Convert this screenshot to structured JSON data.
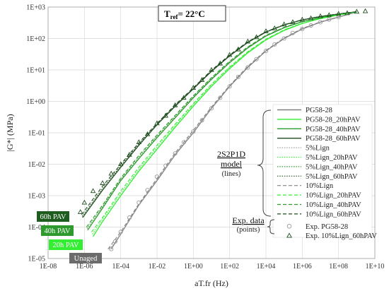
{
  "chart_data": {
    "type": "line",
    "title": "",
    "xlabel": "aT.fr (Hz)",
    "ylabel": "|G*| (MPa)",
    "x_scale": "log",
    "y_scale": "log",
    "xlim": [
      1e-08,
      10000000000.0
    ],
    "ylim": [
      1e-05,
      1000.0
    ],
    "x_ticks": [
      "1E-08",
      "1E-06",
      "1E-04",
      "1E-02",
      "1E+00",
      "1E+02",
      "1E+04",
      "1E+06",
      "1E+08",
      "1E+10"
    ],
    "y_ticks": [
      "1E-05",
      "1E-04",
      "1E-03",
      "1E-02",
      "1E-01",
      "1E+00",
      "1E+01",
      "1E+02",
      "1E+03"
    ],
    "grid": true,
    "annotation": {
      "main": "T",
      "sub": "ref",
      "rest": "= 22°C"
    },
    "group_labels": {
      "model": [
        "2S2P1D",
        "model",
        "(lines)"
      ],
      "exp": [
        "Exp. data",
        "(points)"
      ]
    },
    "age_tags": [
      {
        "text": "60h PAV",
        "color": "#1f5c1f"
      },
      {
        "text": "40h PAV",
        "color": "#2e9a2e"
      },
      {
        "text": "20h PAV",
        "color": "#33ee33"
      },
      {
        "text": "Unaged",
        "color": "#6b6b6b"
      }
    ],
    "series": [
      {
        "name": "PG58-28",
        "color": "#808080",
        "style": "solid",
        "x": [
          3e-05,
          0.0001,
          0.001,
          0.01,
          0.1,
          1,
          10,
          100,
          1000,
          10000,
          100000,
          1000000,
          10000000,
          100000000,
          1000000000
        ],
        "y": [
          2e-05,
          6e-05,
          0.0005,
          0.003,
          0.02,
          0.1,
          0.6,
          3,
          12,
          40,
          100,
          200,
          330,
          480,
          700
        ]
      },
      {
        "name": "PG58-28_20hPAV",
        "color": "#33ee33",
        "style": "solid",
        "x": [
          3e-06,
          1e-05,
          0.0001,
          0.001,
          0.01,
          0.1,
          1,
          10,
          100,
          1000,
          10000,
          100000,
          1000000,
          10000000,
          100000000,
          1000000000
        ],
        "y": [
          5e-05,
          0.00015,
          0.001,
          0.006,
          0.03,
          0.15,
          0.7,
          3,
          11,
          35,
          90,
          180,
          300,
          430,
          560,
          700
        ]
      },
      {
        "name": "PG58-28_40hPAV",
        "color": "#2e9a2e",
        "style": "solid",
        "x": [
          1.5e-06,
          1e-05,
          0.0001,
          0.001,
          0.01,
          0.1,
          1,
          10,
          100,
          1000,
          10000,
          100000,
          1000000,
          10000000,
          100000000,
          1000000000
        ],
        "y": [
          8e-05,
          0.0004,
          0.003,
          0.015,
          0.07,
          0.3,
          1.3,
          5,
          17,
          50,
          120,
          220,
          340,
          460,
          580,
          700
        ]
      },
      {
        "name": "PG58-28_60hPAV",
        "color": "#1f4d1f",
        "style": "solid",
        "x": [
          8e-07,
          1e-05,
          0.0001,
          0.001,
          0.01,
          0.1,
          1,
          10,
          100,
          1000,
          10000,
          100000,
          1000000,
          10000000,
          100000000,
          1000000000
        ],
        "y": [
          0.0002,
          0.0015,
          0.008,
          0.04,
          0.18,
          0.7,
          2.5,
          9,
          28,
          75,
          160,
          270,
          390,
          500,
          600,
          710
        ]
      },
      {
        "name": "5%Lign",
        "color": "#a0a0a0",
        "style": "dotted",
        "x": [
          2.5e-05,
          0.0001,
          0.001,
          0.01,
          0.1,
          1,
          10,
          100,
          1000,
          10000,
          100000,
          1000000,
          10000000,
          100000000,
          1000000000
        ],
        "y": [
          2e-05,
          6e-05,
          0.0005,
          0.0032,
          0.021,
          0.11,
          0.62,
          3.1,
          12.5,
          41,
          102,
          205,
          335,
          485,
          705
        ]
      },
      {
        "name": "5%Lign_20hPAV",
        "color": "#33ee33",
        "style": "dotted",
        "x": [
          2.8e-06,
          1e-05,
          0.0001,
          0.001,
          0.01,
          0.1,
          1,
          10,
          100,
          1000,
          10000,
          100000,
          1000000,
          10000000,
          100000000,
          1000000000
        ],
        "y": [
          6e-05,
          0.00018,
          0.0012,
          0.007,
          0.035,
          0.17,
          0.78,
          3.3,
          12,
          37,
          93,
          185,
          305,
          435,
          565,
          702
        ]
      },
      {
        "name": "5%Lign_40hPAV",
        "color": "#2e9a2e",
        "style": "dotted",
        "x": [
          1.4e-06,
          1e-05,
          0.0001,
          0.001,
          0.01,
          0.1,
          1,
          10,
          100,
          1000,
          10000,
          100000,
          1000000,
          10000000,
          100000000,
          1000000000
        ],
        "y": [
          9e-05,
          0.00045,
          0.0033,
          0.017,
          0.078,
          0.33,
          1.4,
          5.4,
          18,
          52,
          123,
          224,
          344,
          464,
          584,
          702
        ]
      },
      {
        "name": "5%Lign_60hPAV",
        "color": "#1f4d1f",
        "style": "dotted",
        "x": [
          7.5e-07,
          1e-05,
          0.0001,
          0.001,
          0.01,
          0.1,
          1,
          10,
          100,
          1000,
          10000,
          100000,
          1000000,
          10000000,
          100000000,
          1000000000
        ],
        "y": [
          0.00022,
          0.0017,
          0.009,
          0.044,
          0.19,
          0.74,
          2.6,
          9.4,
          29,
          77,
          162,
          272,
          392,
          502,
          602,
          712
        ]
      },
      {
        "name": "10%Lign",
        "color": "#808080",
        "style": "dashed",
        "x": [
          2e-05,
          0.0001,
          0.001,
          0.01,
          0.1,
          1,
          10,
          100,
          1000,
          10000,
          100000,
          1000000,
          10000000,
          100000000,
          1000000000
        ],
        "y": [
          2e-05,
          7e-05,
          0.00055,
          0.0035,
          0.023,
          0.12,
          0.66,
          3.2,
          13,
          42,
          104,
          208,
          338,
          488,
          708
        ]
      },
      {
        "name": "10%Lign_20hPAV",
        "color": "#33ee33",
        "style": "dashed",
        "x": [
          2.5e-06,
          1e-05,
          0.0001,
          0.001,
          0.01,
          0.1,
          1,
          10,
          100,
          1000,
          10000,
          100000,
          1000000,
          10000000,
          100000000,
          1000000000
        ],
        "y": [
          7e-05,
          0.0002,
          0.0014,
          0.008,
          0.04,
          0.19,
          0.85,
          3.5,
          12.5,
          38,
          95,
          188,
          308,
          438,
          568,
          704
        ]
      },
      {
        "name": "10%Lign_40hPAV",
        "color": "#2e9a2e",
        "style": "dashed",
        "x": [
          1.3e-06,
          1e-05,
          0.0001,
          0.001,
          0.01,
          0.1,
          1,
          10,
          100,
          1000,
          10000,
          100000,
          1000000,
          10000000,
          100000000,
          1000000000
        ],
        "y": [
          0.0001,
          0.0005,
          0.0036,
          0.019,
          0.085,
          0.36,
          1.5,
          5.7,
          19,
          54,
          126,
          227,
          347,
          467,
          587,
          704
        ]
      },
      {
        "name": "10%Lign_60hPAV",
        "color": "#1f4d1f",
        "style": "dashed",
        "x": [
          7e-07,
          1e-05,
          0.0001,
          0.001,
          0.01,
          0.1,
          1,
          10,
          100,
          1000,
          10000,
          100000,
          1000000,
          10000000,
          100000000,
          1000000000
        ],
        "y": [
          0.00025,
          0.002,
          0.01,
          0.048,
          0.2,
          0.78,
          2.7,
          9.8,
          30,
          79,
          164,
          274,
          394,
          504,
          604,
          714
        ]
      },
      {
        "name": "Exp. PG58-28",
        "color": "#9a9a9a",
        "marker": "circle",
        "x": [
          3e-05,
          5e-05,
          0.0001,
          0.0003,
          0.001,
          0.003,
          0.01,
          0.03,
          0.1,
          0.3,
          1,
          3,
          10,
          30,
          100,
          300,
          1000,
          3000,
          10000,
          30000,
          100000,
          300000,
          1000000,
          3000000,
          10000000,
          30000000,
          100000000
        ],
        "y": [
          2e-05,
          3.5e-05,
          7e-05,
          0.0002,
          0.0006,
          0.0015,
          0.004,
          0.009,
          0.022,
          0.05,
          0.11,
          0.25,
          0.6,
          1.3,
          3,
          6,
          12,
          22,
          40,
          65,
          100,
          150,
          200,
          260,
          330,
          400,
          480
        ]
      },
      {
        "name": "Exp. 10%Lign_60hPAV",
        "color": "#1f4d1f",
        "marker": "triangle",
        "x": [
          6e-07,
          1e-06,
          3e-06,
          1e-05,
          3e-05,
          0.0001,
          0.0003,
          0.001,
          0.003,
          0.01,
          0.03,
          0.1,
          0.3,
          1,
          3,
          10,
          30,
          100,
          300,
          1000,
          3000,
          10000,
          30000,
          100000,
          300000,
          1000000,
          3000000,
          10000000,
          30000000,
          100000000,
          300000000,
          1000000000,
          3000000000
        ],
        "y": [
          0.0003,
          0.0006,
          0.0014,
          0.0025,
          0.005,
          0.01,
          0.02,
          0.05,
          0.09,
          0.2,
          0.35,
          0.75,
          1.3,
          2.7,
          4.8,
          10,
          16,
          30,
          45,
          80,
          110,
          170,
          210,
          280,
          330,
          400,
          440,
          510,
          550,
          610,
          640,
          710,
          740
        ]
      }
    ]
  }
}
